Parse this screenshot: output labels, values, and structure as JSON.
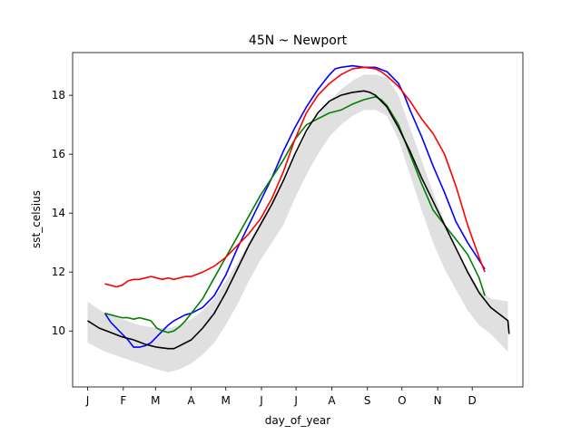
{
  "chart_data": {
    "type": "line",
    "title": "45N ~ Newport",
    "xlabel": "day_of_year",
    "ylabel": "sst_celsius",
    "xlim": [
      -13,
      378
    ],
    "ylim": [
      8.1,
      19.45
    ],
    "grid": false,
    "x_ticks": [
      {
        "value": 0,
        "label": "J"
      },
      {
        "value": 31,
        "label": "F"
      },
      {
        "value": 59,
        "label": "M"
      },
      {
        "value": 90,
        "label": "A"
      },
      {
        "value": 120,
        "label": "M"
      },
      {
        "value": 151,
        "label": "J"
      },
      {
        "value": 181,
        "label": "J"
      },
      {
        "value": 212,
        "label": "A"
      },
      {
        "value": 243,
        "label": "S"
      },
      {
        "value": 273,
        "label": "O"
      },
      {
        "value": 304,
        "label": "N"
      },
      {
        "value": 334,
        "label": "D"
      }
    ],
    "y_ticks": [
      {
        "value": 10,
        "label": "10"
      },
      {
        "value": 12,
        "label": "12"
      },
      {
        "value": 14,
        "label": "14"
      },
      {
        "value": 16,
        "label": "16"
      },
      {
        "value": 18,
        "label": "18"
      }
    ],
    "band": {
      "color": "#e0e0e0",
      "x": [
        0,
        15,
        30,
        45,
        60,
        70,
        80,
        90,
        100,
        110,
        120,
        130,
        140,
        150,
        160,
        170,
        180,
        190,
        200,
        210,
        220,
        230,
        240,
        250,
        260,
        270,
        280,
        290,
        300,
        310,
        320,
        330,
        340,
        350,
        365
      ],
      "upper": [
        11.0,
        10.6,
        10.4,
        10.2,
        10.1,
        10.1,
        10.2,
        10.4,
        10.7,
        11.1,
        11.7,
        12.3,
        13.0,
        13.7,
        14.3,
        15.0,
        15.9,
        16.7,
        17.3,
        17.8,
        18.2,
        18.5,
        18.7,
        18.7,
        18.6,
        18.0,
        16.9,
        15.8,
        14.7,
        13.7,
        12.8,
        12.1,
        11.4,
        11.1,
        11.0
      ],
      "lower": [
        9.6,
        9.3,
        9.1,
        8.9,
        8.7,
        8.6,
        8.7,
        8.9,
        9.2,
        9.6,
        10.2,
        10.9,
        11.7,
        12.4,
        13.0,
        13.6,
        14.5,
        15.3,
        16.0,
        16.6,
        17.0,
        17.3,
        17.5,
        17.5,
        17.3,
        16.5,
        15.3,
        14.1,
        13.0,
        12.1,
        11.4,
        10.7,
        10.2,
        9.9,
        9.3
      ]
    },
    "series": [
      {
        "color": "#000000",
        "x": [
          0,
          10,
          20,
          30,
          40,
          50,
          60,
          70,
          75,
          80,
          90,
          100,
          110,
          120,
          130,
          140,
          150,
          160,
          170,
          180,
          190,
          200,
          210,
          220,
          230,
          240,
          245,
          250,
          260,
          270,
          280,
          290,
          300,
          310,
          320,
          330,
          340,
          350,
          360,
          365,
          366
        ],
        "y": [
          10.35,
          10.1,
          9.95,
          9.8,
          9.7,
          9.55,
          9.45,
          9.4,
          9.4,
          9.5,
          9.7,
          10.1,
          10.6,
          11.3,
          12.1,
          12.9,
          13.6,
          14.3,
          15.1,
          16.0,
          16.8,
          17.4,
          17.8,
          18.0,
          18.1,
          18.15,
          18.1,
          18.0,
          17.6,
          16.9,
          16.1,
          15.2,
          14.4,
          13.6,
          12.8,
          12.0,
          11.3,
          10.8,
          10.5,
          10.35,
          9.9
        ]
      },
      {
        "color": "#0000ff",
        "x": [
          15,
          20,
          25,
          30,
          35,
          40,
          45,
          50,
          55,
          60,
          65,
          70,
          75,
          80,
          85,
          90,
          100,
          110,
          120,
          130,
          140,
          150,
          160,
          170,
          180,
          190,
          200,
          210,
          215,
          220,
          230,
          240,
          250,
          260,
          270,
          275,
          280,
          290,
          300,
          310,
          320,
          330,
          340,
          345
        ],
        "y": [
          10.6,
          10.3,
          10.1,
          9.9,
          9.7,
          9.45,
          9.45,
          9.5,
          9.6,
          9.8,
          10.0,
          10.2,
          10.35,
          10.45,
          10.55,
          10.6,
          10.8,
          11.2,
          11.9,
          12.8,
          13.6,
          14.4,
          15.2,
          16.1,
          16.9,
          17.6,
          18.2,
          18.7,
          18.9,
          18.95,
          19.0,
          18.95,
          18.95,
          18.8,
          18.4,
          18.0,
          17.5,
          16.6,
          15.6,
          14.7,
          13.7,
          13.0,
          12.4,
          12.1
        ]
      },
      {
        "color": "#008000",
        "x": [
          15,
          20,
          25,
          30,
          35,
          40,
          45,
          50,
          55,
          60,
          65,
          70,
          75,
          80,
          85,
          90,
          100,
          110,
          120,
          130,
          140,
          150,
          160,
          170,
          180,
          190,
          200,
          210,
          220,
          230,
          240,
          245,
          250,
          255,
          260,
          270,
          280,
          290,
          300,
          310,
          320,
          330,
          340,
          345
        ],
        "y": [
          10.6,
          10.55,
          10.5,
          10.45,
          10.45,
          10.4,
          10.45,
          10.4,
          10.35,
          10.1,
          10.0,
          9.95,
          10.0,
          10.15,
          10.35,
          10.6,
          11.1,
          11.8,
          12.5,
          13.2,
          13.9,
          14.6,
          15.2,
          15.8,
          16.5,
          17.0,
          17.2,
          17.4,
          17.5,
          17.7,
          17.85,
          17.9,
          17.95,
          17.85,
          17.65,
          17.0,
          16.0,
          15.0,
          14.1,
          13.6,
          13.1,
          12.6,
          11.8,
          11.2
        ]
      },
      {
        "color": "#ff0000",
        "x": [
          15,
          20,
          25,
          30,
          35,
          40,
          45,
          50,
          55,
          60,
          65,
          70,
          75,
          80,
          85,
          90,
          100,
          110,
          120,
          130,
          140,
          150,
          160,
          170,
          180,
          190,
          200,
          210,
          220,
          230,
          240,
          250,
          255,
          260,
          270,
          280,
          290,
          300,
          310,
          320,
          330,
          340,
          345
        ],
        "y": [
          11.6,
          11.55,
          11.5,
          11.55,
          11.7,
          11.75,
          11.75,
          11.8,
          11.85,
          11.8,
          11.75,
          11.8,
          11.75,
          11.8,
          11.85,
          11.85,
          12.0,
          12.2,
          12.5,
          12.9,
          13.3,
          13.8,
          14.5,
          15.4,
          16.5,
          17.4,
          18.0,
          18.4,
          18.7,
          18.9,
          18.95,
          18.9,
          18.8,
          18.65,
          18.3,
          17.8,
          17.2,
          16.7,
          16.0,
          14.9,
          13.6,
          12.5,
          12.0
        ]
      }
    ]
  }
}
